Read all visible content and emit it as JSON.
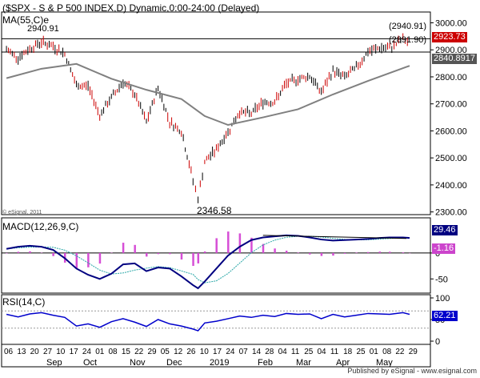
{
  "header": {
    "title": "($SPX - S & P 500 INDEX,D) Dynamic,0:00-24:00 (Delayed)",
    "ma_legend": "MA(55,C)e",
    "copyright": "© eSignal, 2011"
  },
  "levels": {
    "high_label": "2940.91",
    "high_box": "(2940.91)",
    "support_box": "(2891.90)",
    "low_label": "2346.58",
    "last_price_tag": "2923.73",
    "ma_tag": "2840.8917"
  },
  "macd": {
    "legend": "MACD(12,26,9,C)",
    "value_tag": "29.46",
    "hist_tag": "-1.16"
  },
  "rsi": {
    "legend": "RSI(14,C)",
    "value_tag": "62.21"
  },
  "axes": {
    "price_ticks": [
      "3000.00",
      "2900.00",
      "2800.00",
      "2700.00",
      "2600.00",
      "2500.00",
      "2400.00",
      "2300.00"
    ],
    "macd_ticks": [
      "0",
      "-50"
    ],
    "rsi_ticks": [
      "100",
      "50",
      "0"
    ],
    "date_row1": [
      "06",
      "13",
      "20",
      "27",
      "10",
      "17",
      "24",
      "01",
      "08",
      "15",
      "22",
      "29",
      "05",
      "12",
      "26",
      "10",
      "17",
      "24",
      "07",
      "14",
      "28",
      "04",
      "11",
      "25",
      "04",
      "11",
      "18",
      "25",
      "01",
      "08",
      "22",
      "29"
    ],
    "date_row2": [
      "Sep",
      "Oct",
      "Nov",
      "Dec",
      "2019",
      "Feb",
      "Mar",
      "Apr",
      "May"
    ]
  },
  "footer": "Published by eSignal - www.esignal.com",
  "colors": {
    "bars": "#cc0000",
    "ma": "#808080",
    "macd": "#000080",
    "signal": "#2aa7a7",
    "hist": "#d64fd6",
    "rsi": "#0000cc",
    "grid": "#999999"
  },
  "chart_data": {
    "type": "bar",
    "title": "($SPX - S & P 500 INDEX,D) Dynamic,0:00-24:00 (Delayed)",
    "x_range": [
      "2018-08-30",
      "2019-04-30"
    ],
    "ylim": [
      2290,
      3040
    ],
    "series": [
      {
        "name": "$SPX",
        "x": [
          "2018-08-31",
          "2018-09-07",
          "2018-09-14",
          "2018-09-21",
          "2018-09-28",
          "2018-10-05",
          "2018-10-12",
          "2018-10-19",
          "2018-10-26",
          "2018-11-02",
          "2018-11-09",
          "2018-11-16",
          "2018-11-23",
          "2018-11-30",
          "2018-12-07",
          "2018-12-14",
          "2018-12-21",
          "2018-12-24",
          "2018-12-28",
          "2019-01-04",
          "2019-01-11",
          "2019-01-18",
          "2019-01-25",
          "2019-02-01",
          "2019-02-08",
          "2019-02-15",
          "2019-02-22",
          "2019-03-01",
          "2019-03-08",
          "2019-03-15",
          "2019-03-22",
          "2019-03-29",
          "2019-04-05",
          "2019-04-12",
          "2019-04-18",
          "2019-04-26",
          "2019-04-30"
        ],
        "values": [
          2901,
          2871,
          2904,
          2929,
          2913,
          2885,
          2767,
          2767,
          2658,
          2723,
          2781,
          2736,
          2632,
          2760,
          2633,
          2599,
          2416,
          2351,
          2485,
          2532,
          2596,
          2670,
          2664,
          2707,
          2707,
          2775,
          2792,
          2803,
          2743,
          2822,
          2800,
          2834,
          2892,
          2907,
          2905,
          2940,
          2923
        ]
      },
      {
        "name": "MA(55,C)e",
        "x": [
          "2018-08-31",
          "2018-09-21",
          "2018-10-12",
          "2018-11-02",
          "2018-11-23",
          "2018-12-14",
          "2018-12-28",
          "2019-01-11",
          "2019-02-01",
          "2019-02-22",
          "2019-03-15",
          "2019-04-05",
          "2019-04-30"
        ],
        "values": [
          2795,
          2830,
          2848,
          2793,
          2752,
          2718,
          2655,
          2622,
          2650,
          2680,
          2735,
          2785,
          2841
        ]
      }
    ]
  }
}
